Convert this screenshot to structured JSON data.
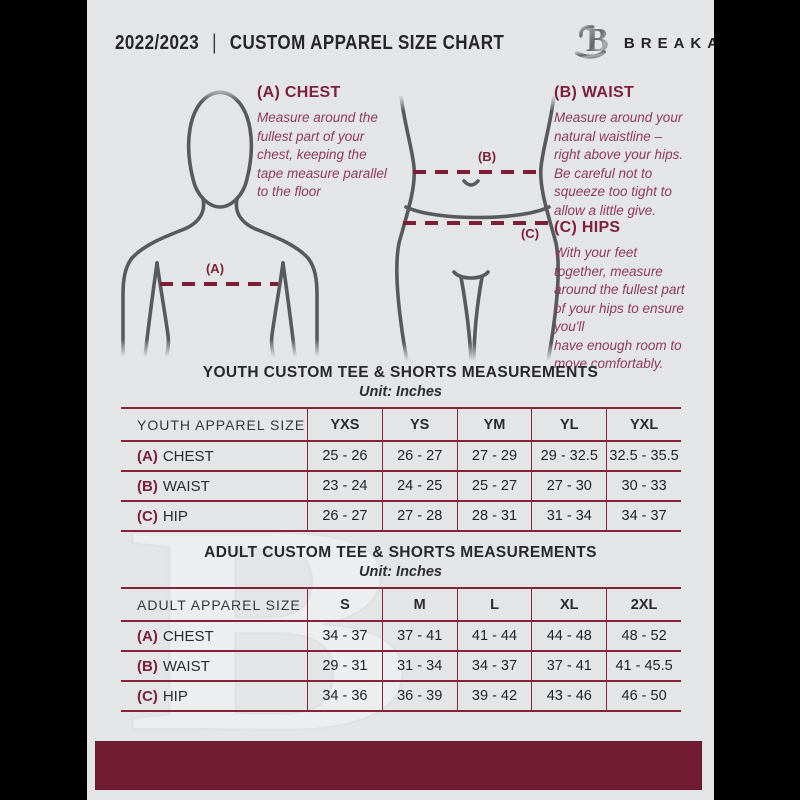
{
  "page": {
    "title_year": "2022/2023",
    "title_sep": "|",
    "title_main": "CUSTOM APPAREL SIZE CHART",
    "brand": "BREAKAWAY",
    "watermark_letter": "B"
  },
  "guide": {
    "chest": {
      "heading": "(A) CHEST",
      "body": "Measure around the\nfullest part of your\nchest, keeping the\ntape measure parallel\nto the floor"
    },
    "waist": {
      "heading": "(B) WAIST",
      "body": "Measure around your\nnatural waistline –\nright above your hips.\nBe careful not to\nsqueeze too tight to\nallow a little give."
    },
    "hips": {
      "heading": "(C) HIPS",
      "body": "With your feet\ntogether, measure\naround the fullest part\nof your hips to ensure\nyou'll\nhave enough room to\nmove comfortably."
    },
    "marker_a": "(A)",
    "marker_b": "(B)",
    "marker_c": "(C)"
  },
  "youth": {
    "title": "YOUTH CUSTOM TEE & SHORTS MEASUREMENTS",
    "unit": "Unit: Inches",
    "table": {
      "header": [
        "YOUTH APPAREL SIZE",
        "YXS",
        "YS",
        "YM",
        "YL",
        "YXL"
      ],
      "rows": [
        {
          "prefix": "(A)",
          "label": "CHEST",
          "values": [
            "25 - 26",
            "26 - 27",
            "27 - 29",
            "29 - 32.5",
            "32.5 - 35.5"
          ]
        },
        {
          "prefix": "(B)",
          "label": "WAIST",
          "values": [
            "23 - 24",
            "24 - 25",
            "25 - 27",
            "27 - 30",
            "30 - 33"
          ]
        },
        {
          "prefix": "(C)",
          "label": "HIP",
          "values": [
            "26 - 27",
            "27 - 28",
            "28 - 31",
            "31 - 34",
            "34 - 37"
          ]
        }
      ]
    }
  },
  "adult": {
    "title": "ADULT CUSTOM TEE & SHORTS MEASUREMENTS",
    "unit": "Unit: Inches",
    "table": {
      "header": [
        "ADULT APPAREL SIZE",
        "S",
        "M",
        "L",
        "XL",
        "2XL"
      ],
      "rows": [
        {
          "prefix": "(A)",
          "label": "CHEST",
          "values": [
            "34 - 37",
            "37 - 41",
            "41 - 44",
            "44 - 48",
            "48 - 52"
          ]
        },
        {
          "prefix": "(B)",
          "label": "WAIST",
          "values": [
            "29 - 31",
            "31 - 34",
            "34 - 37",
            "37 - 41",
            "41 - 45.5"
          ]
        },
        {
          "prefix": "(C)",
          "label": "HIP",
          "values": [
            "34 - 36",
            "36 - 39",
            "39 - 42",
            "43 - 46",
            "46 - 50"
          ]
        }
      ]
    }
  },
  "colors": {
    "background": "#e4e5e7",
    "side_bars": "#000000",
    "footer_bar": "#721c34",
    "table_line": "#84243a",
    "heading_maroon": "#7e1f3b",
    "paragraph_maroon": "#8f3b57",
    "figure_stroke": "#58595b"
  }
}
